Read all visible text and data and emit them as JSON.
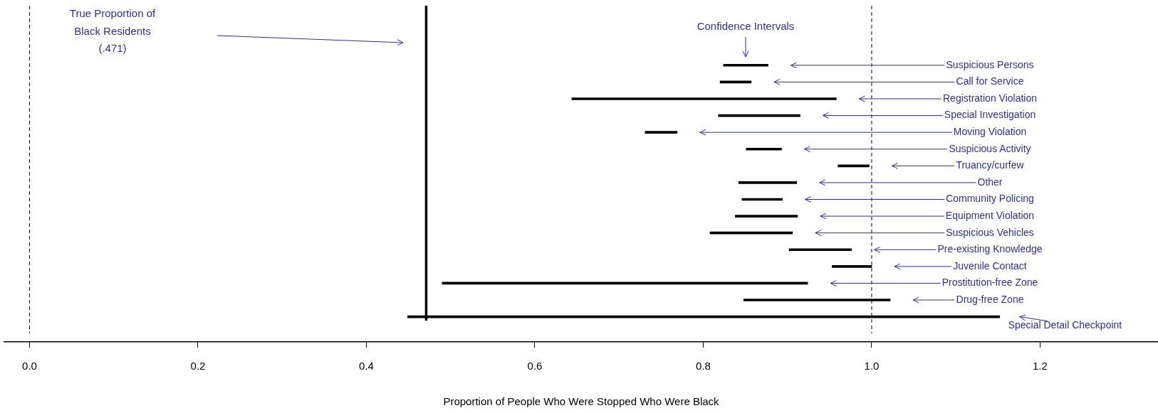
{
  "chart_data": {
    "type": "bar",
    "orientation": "horizontal",
    "xlabel": "Proportion of People Who Were Stopped Who Were Black",
    "categories": [
      "Suspicious Persons",
      "Call for Service",
      "Registration Violation",
      "Special Investigation",
      "Moving Violation",
      "Suspicious Activity",
      "Truancy/curfew",
      "Other",
      "Community Policing",
      "Equipment Violation",
      "Suspicious Vehicles",
      "Pre-existing Knowledge",
      "Juvenile Contact",
      "Prostitution-free Zone",
      "Drug-free Zone",
      "Special Detail Checkpoint"
    ],
    "base": [
      0.824,
      0.82,
      0.644,
      0.818,
      0.731,
      0.851,
      0.96,
      0.842,
      0.846,
      0.838,
      0.808,
      0.902,
      0.953,
      0.49,
      0.848,
      0.449
    ],
    "values": [
      0.053,
      0.037,
      0.314,
      0.097,
      0.038,
      0.042,
      0.037,
      0.069,
      0.048,
      0.074,
      0.098,
      0.074,
      0.047,
      0.434,
      0.174,
      0.703
    ],
    "color": "#000000",
    "xlim": [
      -0.03,
      1.34
    ],
    "xticks": [
      {
        "value": 0,
        "label": "0.0"
      },
      0.2,
      0.4,
      0.6,
      0.8,
      {
        "value": 1,
        "label": "1.0"
      },
      1.2
    ],
    "ref_lines": [
      {
        "axis": "x",
        "value": 0,
        "line_style": "dashed",
        "color": "#000000"
      },
      {
        "axis": "x",
        "value": 0.471,
        "line_style": "solid",
        "color": "#000000"
      },
      {
        "axis": "x",
        "value": 1,
        "line_style": "dashed",
        "color": "#000000"
      }
    ],
    "annotations": [
      "True Proportion of\nBlack Residents\n(.471)",
      "Confidence Intervals"
    ],
    "grid": false
  }
}
